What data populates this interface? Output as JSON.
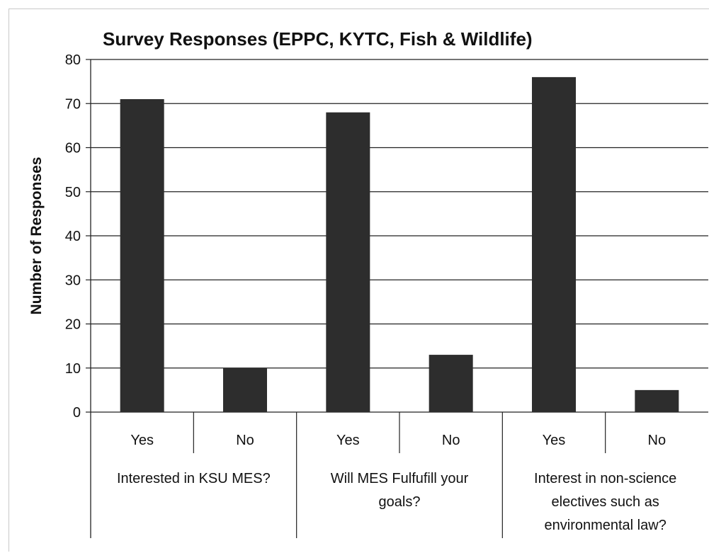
{
  "chart_data": {
    "type": "bar",
    "title": "Survey Responses (EPPC, KYTC, Fish & Wildlife)",
    "ylabel": "Number of Responses",
    "xlabel": "",
    "ylim": [
      0,
      80
    ],
    "yticks": [
      0,
      10,
      20,
      30,
      40,
      50,
      60,
      70,
      80
    ],
    "grid": true,
    "groups": [
      {
        "label": [
          "Interested in KSU MES?"
        ]
      },
      {
        "label": [
          "Will MES Fulfufill your",
          "goals?"
        ]
      },
      {
        "label": [
          "Interest in non-science",
          "electives such as",
          "environmental law?"
        ]
      }
    ],
    "categories": [
      "Yes",
      "No",
      "Yes",
      "No",
      "Yes",
      "No"
    ],
    "values": [
      71,
      10,
      68,
      13,
      76,
      5
    ],
    "bar_color": "#2d2d2d"
  }
}
